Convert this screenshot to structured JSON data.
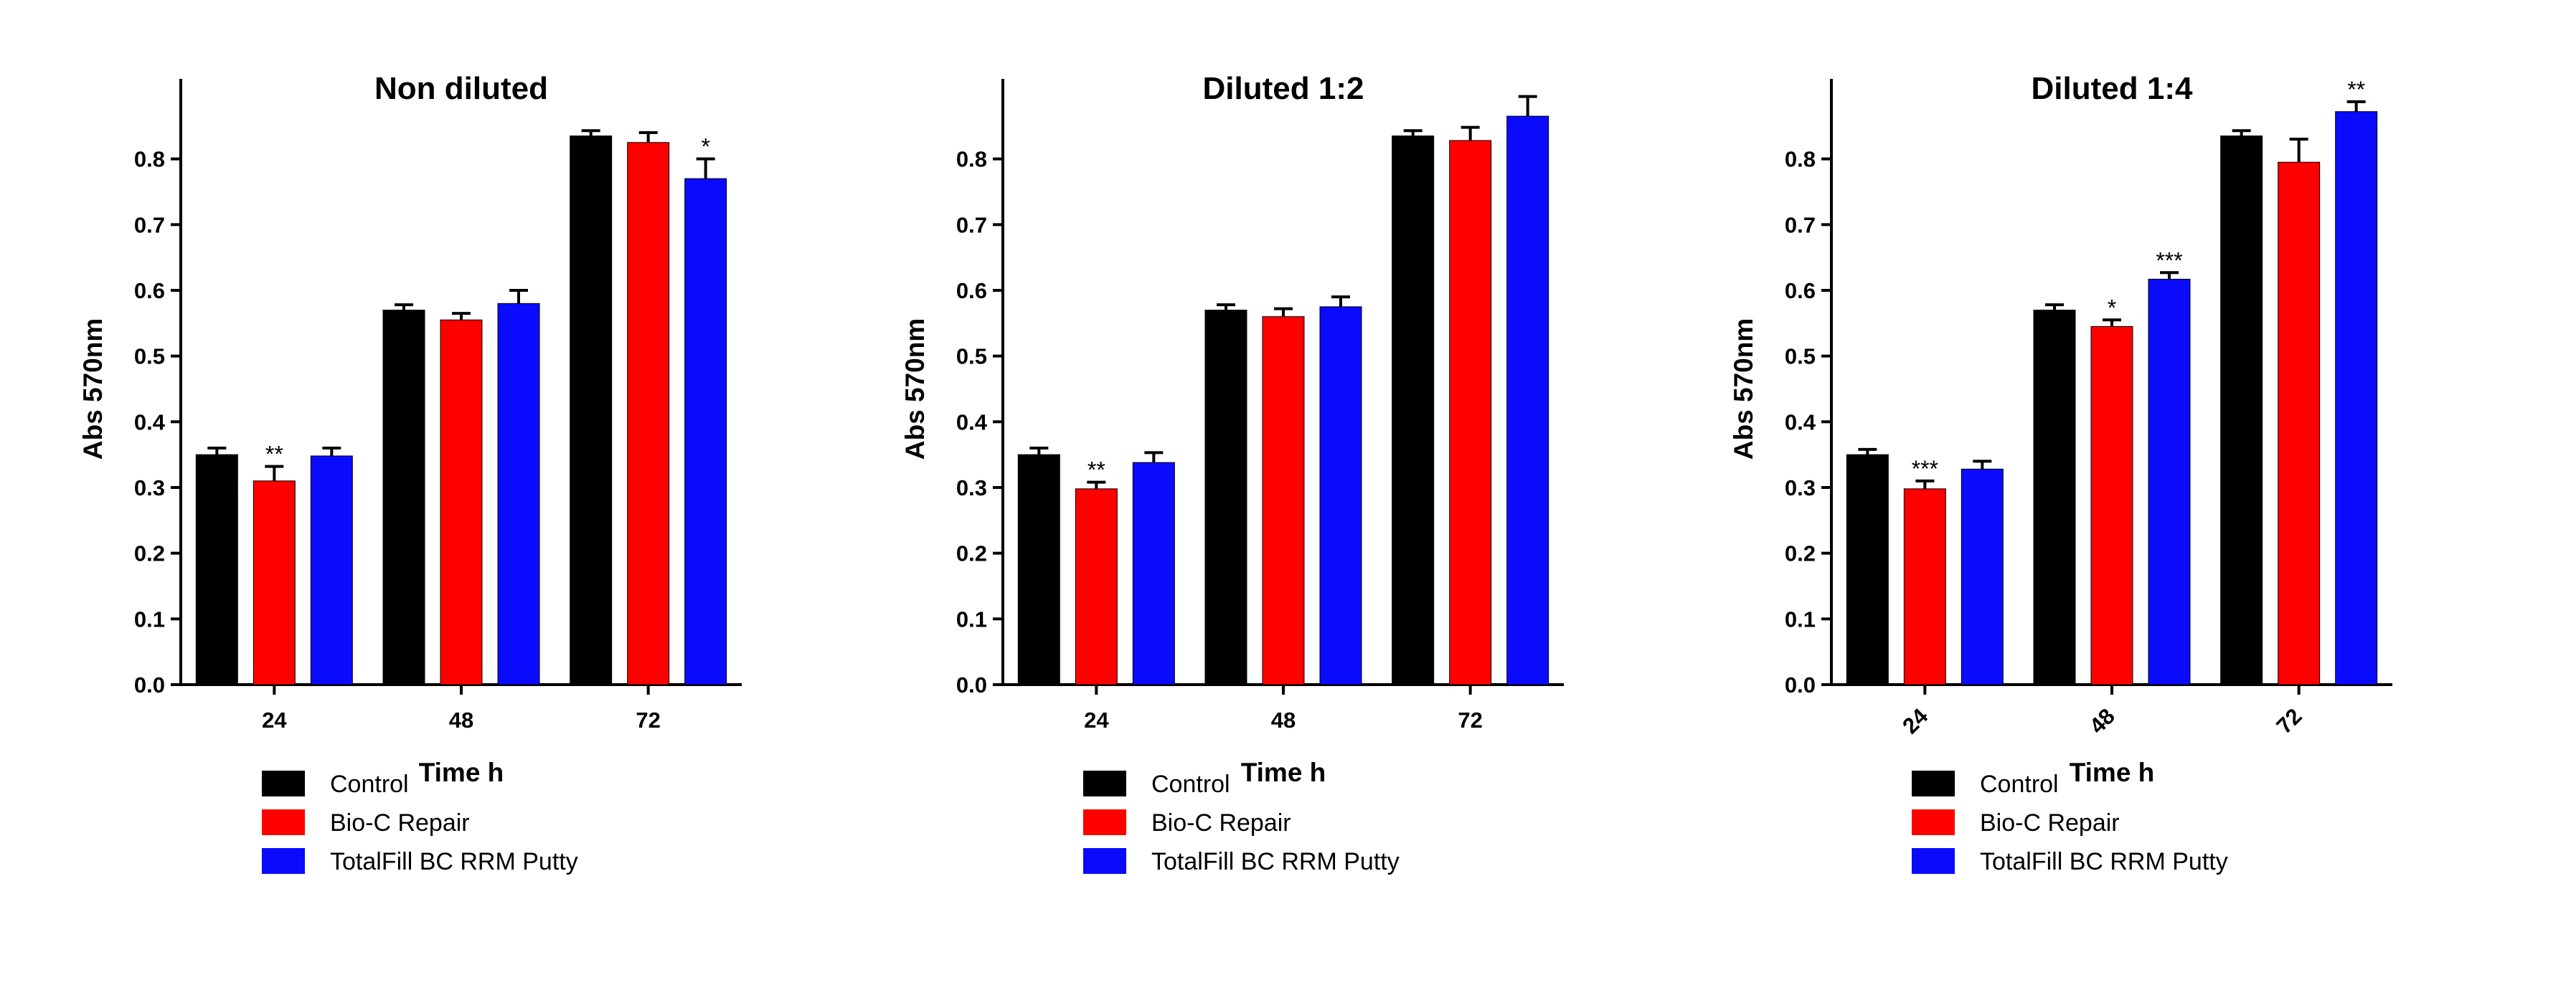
{
  "figure": {
    "series_colors": {
      "Control": "#000000",
      "Bio-C Repair": "#ff0000",
      "TotalFill BC RRM Putty": "#0a0aff"
    }
  },
  "chart_data": [
    {
      "type": "bar",
      "title": "Non diluted",
      "xlabel": "Time h",
      "ylabel": "Abs 570nm",
      "ylim": [
        0,
        0.9
      ],
      "yticks": [
        "0.0",
        "0.1",
        "0.2",
        "0.3",
        "0.4",
        "0.5",
        "0.6",
        "0.7",
        "0.8"
      ],
      "categories": [
        "24",
        "48",
        "72"
      ],
      "rotated_ticks": false,
      "legend_position": "bottom-left",
      "series": [
        {
          "name": "Control",
          "color": "#000000",
          "values": [
            0.35,
            0.57,
            0.835
          ],
          "errors": [
            0.01,
            0.008,
            0.008
          ],
          "sig": [
            "",
            "",
            ""
          ]
        },
        {
          "name": "Bio-C Repair",
          "color": "#ff0000",
          "values": [
            0.31,
            0.555,
            0.825
          ],
          "errors": [
            0.022,
            0.01,
            0.015
          ],
          "sig": [
            "**",
            "",
            ""
          ]
        },
        {
          "name": "TotalFill BC RRM Putty",
          "color": "#0a0aff",
          "values": [
            0.348,
            0.58,
            0.77
          ],
          "errors": [
            0.012,
            0.02,
            0.03
          ],
          "sig": [
            "",
            "",
            "*"
          ]
        }
      ]
    },
    {
      "type": "bar",
      "title": "Diluted 1:2",
      "xlabel": "Time h",
      "ylabel": "Abs 570nm",
      "ylim": [
        0,
        0.9
      ],
      "yticks": [
        "0.0",
        "0.1",
        "0.2",
        "0.3",
        "0.4",
        "0.5",
        "0.6",
        "0.7",
        "0.8"
      ],
      "categories": [
        "24",
        "48",
        "72"
      ],
      "rotated_ticks": false,
      "legend_position": "bottom-left",
      "series": [
        {
          "name": "Control",
          "color": "#000000",
          "values": [
            0.35,
            0.57,
            0.835
          ],
          "errors": [
            0.01,
            0.008,
            0.008
          ],
          "sig": [
            "",
            "",
            ""
          ]
        },
        {
          "name": "Bio-C Repair",
          "color": "#ff0000",
          "values": [
            0.298,
            0.56,
            0.828
          ],
          "errors": [
            0.01,
            0.012,
            0.02
          ],
          "sig": [
            "**",
            "",
            ""
          ]
        },
        {
          "name": "TotalFill BC RRM Putty",
          "color": "#0a0aff",
          "values": [
            0.338,
            0.575,
            0.865
          ],
          "errors": [
            0.015,
            0.015,
            0.03
          ],
          "sig": [
            "",
            "",
            ""
          ]
        }
      ]
    },
    {
      "type": "bar",
      "title": "Diluted 1:4",
      "xlabel": "Time h",
      "ylabel": "Abs 570nm",
      "ylim": [
        0,
        0.9
      ],
      "yticks": [
        "0.0",
        "0.1",
        "0.2",
        "0.3",
        "0.4",
        "0.5",
        "0.6",
        "0.7",
        "0.8"
      ],
      "categories": [
        "24",
        "48",
        "72"
      ],
      "rotated_ticks": true,
      "legend_position": "bottom-left",
      "series": [
        {
          "name": "Control",
          "color": "#000000",
          "values": [
            0.35,
            0.57,
            0.835
          ],
          "errors": [
            0.008,
            0.008,
            0.008
          ],
          "sig": [
            "",
            "",
            ""
          ]
        },
        {
          "name": "Bio-C Repair",
          "color": "#ff0000",
          "values": [
            0.298,
            0.545,
            0.795
          ],
          "errors": [
            0.012,
            0.01,
            0.035
          ],
          "sig": [
            "***",
            "*",
            ""
          ]
        },
        {
          "name": "TotalFill BC RRM Putty",
          "color": "#0a0aff",
          "values": [
            0.328,
            0.617,
            0.872
          ],
          "errors": [
            0.012,
            0.01,
            0.015
          ],
          "sig": [
            "",
            "***",
            "**"
          ]
        }
      ]
    }
  ]
}
